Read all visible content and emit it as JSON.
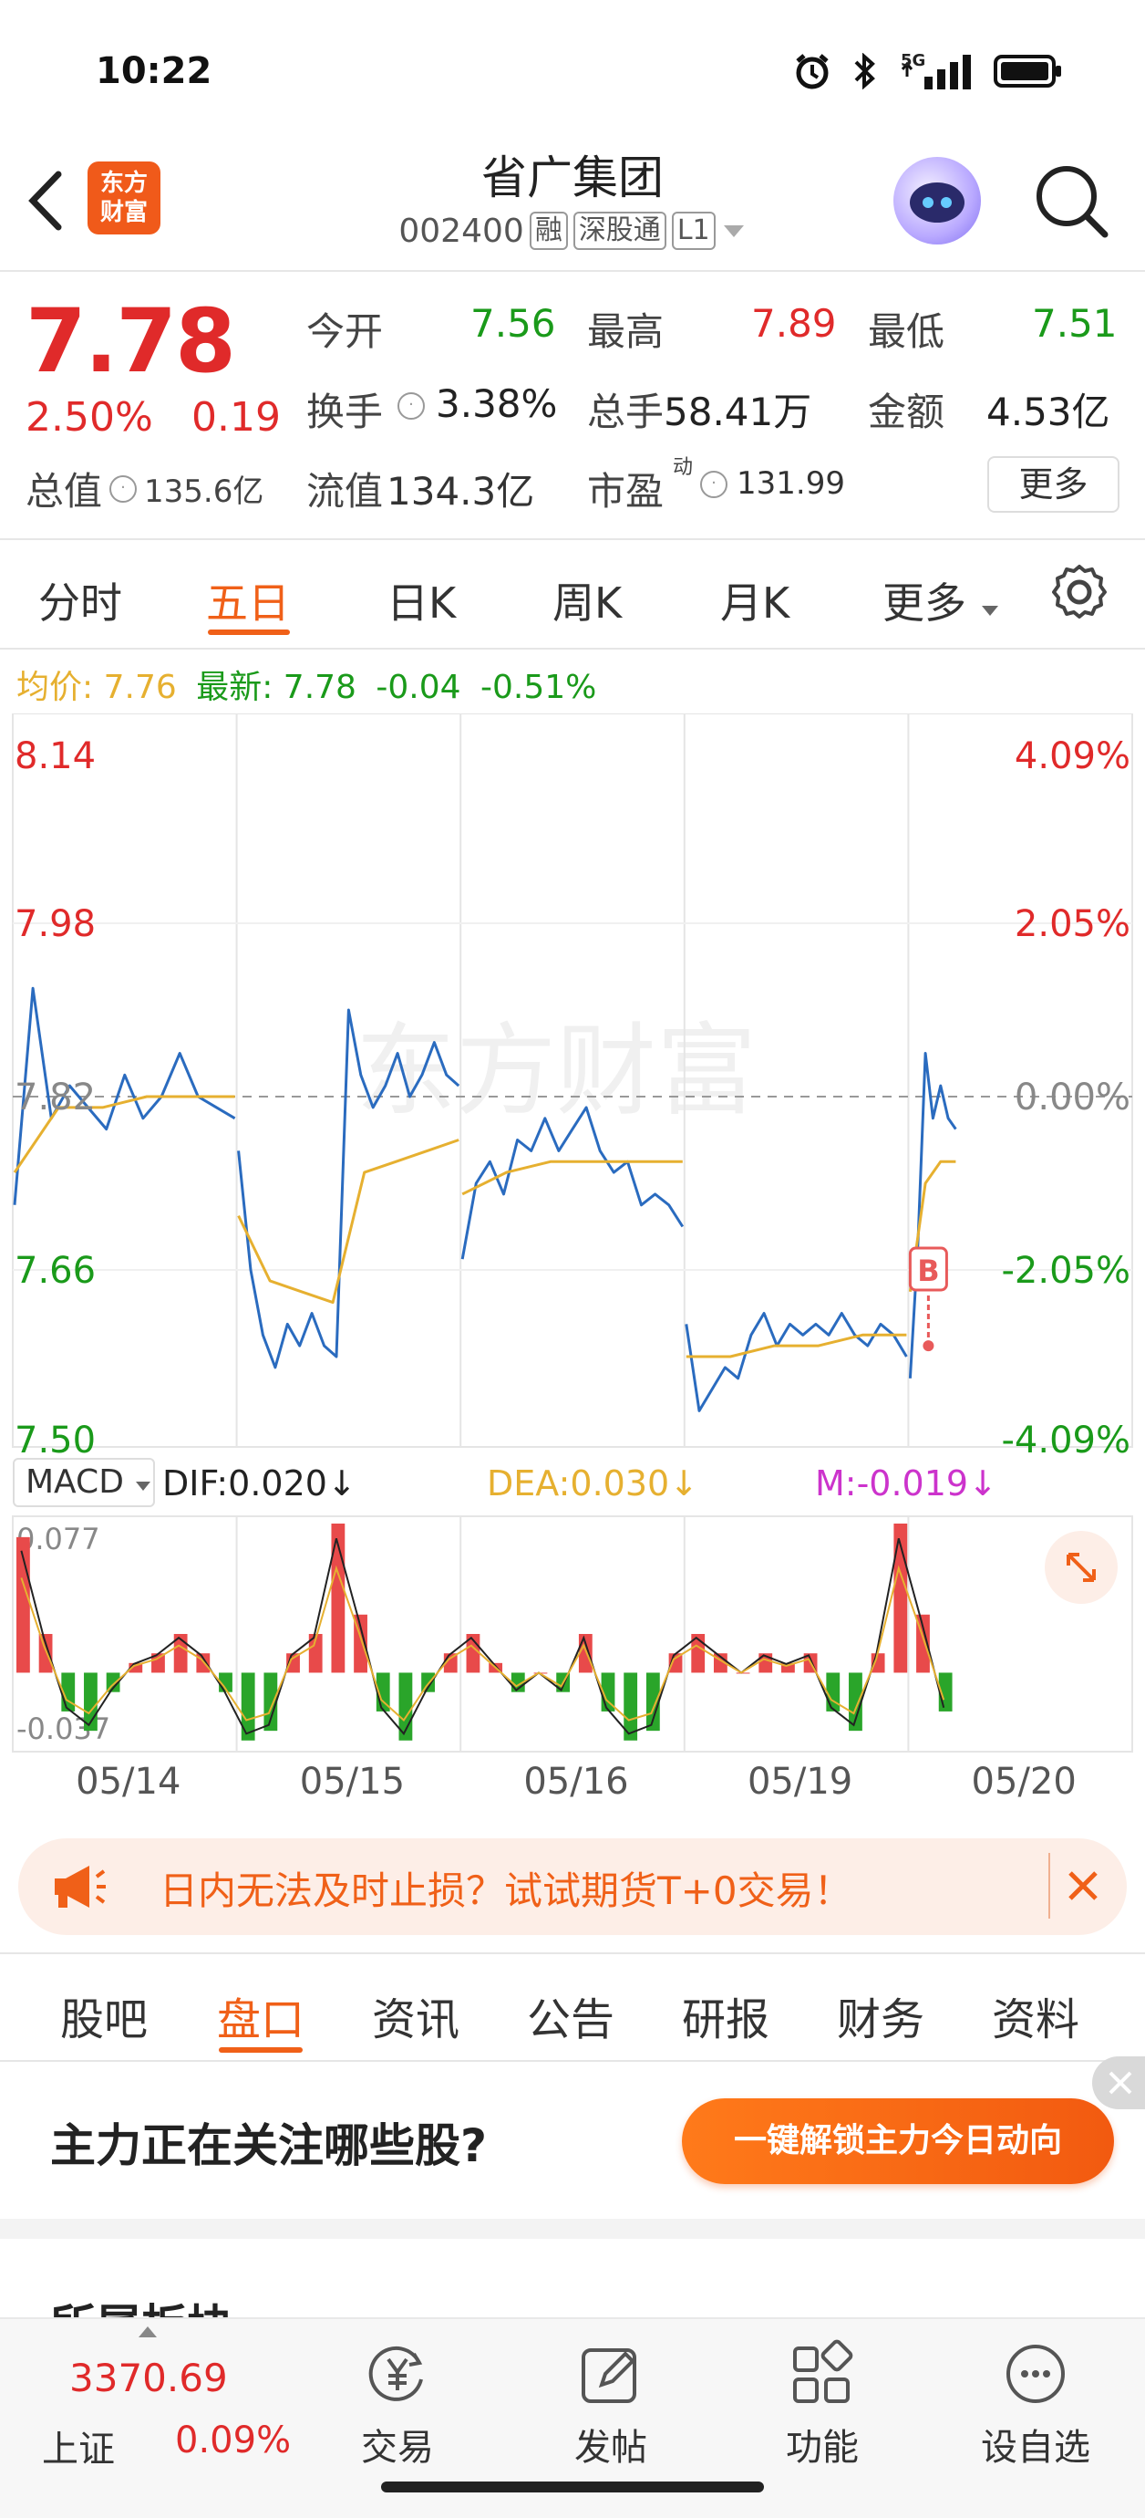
{
  "status_bar": {
    "time": "10:22",
    "network": "5G"
  },
  "header": {
    "brand_line1": "东方",
    "brand_line2": "财富",
    "stock_name": "省广集团",
    "stock_code": "002400",
    "tags": [
      "融",
      "深股通",
      "L1"
    ]
  },
  "quote": {
    "price": "7.78",
    "pct_change": "2.50%",
    "change": "0.19",
    "open_label": "今开",
    "open": "7.56",
    "high_label": "最高",
    "high": "7.89",
    "low_label": "最低",
    "low": "7.51",
    "turnover_label": "换手",
    "turnover": "3.38%",
    "volume_label": "总手",
    "volume": "58.41万",
    "amount_label": "金额",
    "amount": "4.53亿",
    "mktcap_label": "总值",
    "mktcap": "135.6亿",
    "float_label": "流值",
    "float_cap": "134.3亿",
    "pe_label": "市盈",
    "pe_sup": "动",
    "pe": "131.99",
    "more_label": "更多"
  },
  "chart_tabs": {
    "items": [
      "分时",
      "五日",
      "日K",
      "周K",
      "月K",
      "更多"
    ],
    "active": "五日"
  },
  "avg_line": {
    "avg_label": "均价:",
    "avg_value": "7.76",
    "latest_label": "最新:",
    "latest_value": "7.78",
    "diff": "-0.04",
    "diff_pct": "-0.51%"
  },
  "chart_data": {
    "type": "line",
    "title": "",
    "watermark": "东方财富",
    "y_ticks_left": [
      "8.14",
      "7.98",
      "7.82",
      "7.66",
      "7.50"
    ],
    "y_ticks_right": [
      "4.09%",
      "2.05%",
      "0.00%",
      "-2.05%",
      "-4.09%"
    ],
    "ylim": [
      7.5,
      8.14
    ],
    "reference_price": 7.82,
    "x": [
      "05/14",
      "05/15",
      "05/16",
      "05/19",
      "05/20"
    ],
    "series": [
      {
        "name": "最新",
        "color": "#2a6bbf",
        "values": [
          [
            7.72,
            7.92,
            7.8,
            7.83,
            7.81,
            7.79,
            7.84,
            7.8,
            7.82,
            7.86,
            7.82,
            7.81,
            7.8
          ],
          [
            7.77,
            7.66,
            7.6,
            7.57,
            7.61,
            7.59,
            7.62,
            7.59,
            7.58,
            7.9,
            7.84,
            7.81,
            7.83,
            7.86,
            7.82,
            7.84,
            7.87,
            7.84,
            7.83
          ],
          [
            7.67,
            7.74,
            7.76,
            7.73,
            7.78,
            7.77,
            7.8,
            7.77,
            7.79,
            7.81,
            7.77,
            7.75,
            7.76,
            7.72,
            7.73,
            7.72,
            7.7
          ],
          [
            7.61,
            7.53,
            7.55,
            7.57,
            7.56,
            7.6,
            7.62,
            7.59,
            7.61,
            7.6,
            7.61,
            7.6,
            7.62,
            7.6,
            7.59,
            7.61,
            7.6,
            7.58
          ],
          [
            7.56,
            7.68,
            7.86,
            7.8,
            7.83,
            7.8,
            7.79
          ]
        ]
      },
      {
        "name": "均价",
        "color": "#e6b030",
        "values": [
          [
            7.75,
            7.81,
            7.81,
            7.82,
            7.82,
            7.82
          ],
          [
            7.71,
            7.65,
            7.64,
            7.63,
            7.75,
            7.76,
            7.77,
            7.78
          ],
          [
            7.73,
            7.75,
            7.76,
            7.76,
            7.76,
            7.76
          ],
          [
            7.58,
            7.58,
            7.59,
            7.59,
            7.6,
            7.6
          ],
          [
            7.64,
            7.74,
            7.76,
            7.76
          ]
        ]
      }
    ],
    "marker": {
      "label": "B",
      "color": "#e85a5a"
    }
  },
  "macd": {
    "selector": "MACD",
    "dif_label": "DIF:0.020",
    "dea_label": "DEA:0.030",
    "m_label": "M:-0.019",
    "dif_color": "#222222",
    "dea_color": "#e6b030",
    "m_color": "#cc33cc",
    "y_top": "0.077",
    "y_bottom": "-0.037",
    "bars": [
      0.07,
      0.02,
      -0.02,
      -0.03,
      -0.01,
      0.005,
      0.01,
      0.02,
      0.01,
      -0.01,
      -0.035,
      -0.03,
      0.01,
      0.02,
      0.077,
      0.03,
      -0.02,
      -0.035,
      -0.01,
      0.01,
      0.02,
      0.005,
      -0.01,
      0.0,
      -0.01,
      0.02,
      -0.02,
      -0.035,
      -0.03,
      0.01,
      0.02,
      0.01,
      0.0,
      0.01,
      0.005,
      0.01,
      -0.02,
      -0.03,
      0.01,
      0.077,
      0.03,
      -0.02
    ]
  },
  "promo": {
    "text": "日内无法及时止损？试试期货T+0交易！"
  },
  "sub_tabs": {
    "items": [
      "股吧",
      "盘口",
      "资讯",
      "公告",
      "研报",
      "财务",
      "资料"
    ],
    "active": "盘口"
  },
  "ad": {
    "title": "主力正在关注哪些股?",
    "button": "一键解锁主力今日动向"
  },
  "section_peek": "所属板块",
  "bottom_nav": {
    "index_value": "3370.69",
    "index_name": "上证",
    "index_pct": "0.09%",
    "items": [
      {
        "label": "交易",
        "icon": "trade-icon"
      },
      {
        "label": "发帖",
        "icon": "post-icon"
      },
      {
        "label": "功能",
        "icon": "apps-icon"
      },
      {
        "label": "设自选",
        "icon": "watchlist-icon"
      }
    ]
  }
}
